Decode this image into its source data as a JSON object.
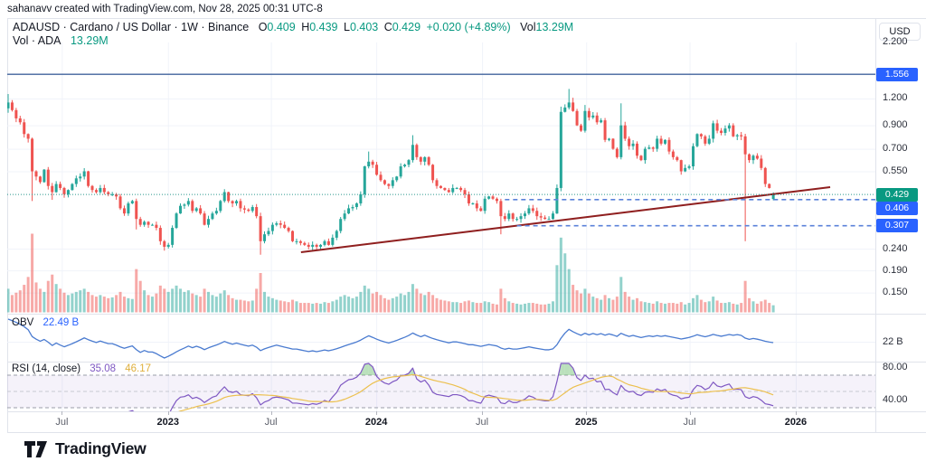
{
  "attribution": "sahanavv created with TradingView.com, Nov 28, 2025 00:31 UTC-8",
  "legend": {
    "symbol": "ADAUSD · Cardano / US Dollar · 1W · Binance",
    "o_label": "O",
    "o_value": "0.409",
    "h_label": "H",
    "h_value": "0.439",
    "l_label": "L",
    "l_value": "0.403",
    "c_label": "C",
    "c_value": "0.429",
    "change": "+0.020 (+4.89%)",
    "vol_label": "Vol",
    "vol_value": "13.29M",
    "row2_label": "Vol · ADA",
    "row2_value": "13.29M"
  },
  "indicators": {
    "obv_label": "OBV",
    "obv_value": "22.49 B",
    "rsi_label": "RSI (14, close)",
    "rsi_value": "35.08",
    "rsi_ma_value": "46.17"
  },
  "price_axis": {
    "currency": "USD",
    "ticks": [
      {
        "text": "2.200",
        "value": 2.2
      },
      {
        "text": "1.200",
        "value": 1.2
      },
      {
        "text": "0.900",
        "value": 0.9
      },
      {
        "text": "0.700",
        "value": 0.7
      },
      {
        "text": "0.550",
        "value": 0.55
      },
      {
        "text": "0.240",
        "value": 0.24
      },
      {
        "text": "0.190",
        "value": 0.19
      },
      {
        "text": "0.150",
        "value": 0.15
      }
    ],
    "obv_tick": {
      "text": "22 B",
      "y_value": 22
    },
    "rsi_ticks": [
      {
        "text": "80.00",
        "value": 80
      },
      {
        "text": "40.00",
        "value": 40
      }
    ],
    "badges": [
      {
        "text": "1.556",
        "price": 1.556,
        "color": "#2962ff"
      },
      {
        "text": "0.429",
        "price": 0.429,
        "color": "#089981"
      },
      {
        "text": "0.406",
        "price": 0.406,
        "color": "#2962ff"
      },
      {
        "text": "0.307",
        "price": 0.307,
        "color": "#2962ff"
      }
    ]
  },
  "time_axis": {
    "labels": [
      {
        "text": "Jul",
        "week": 13.4,
        "bold": false
      },
      {
        "text": "2023",
        "week": 39.9,
        "bold": true
      },
      {
        "text": "Jul",
        "week": 65.6,
        "bold": false
      },
      {
        "text": "2024",
        "week": 91.9,
        "bold": true
      },
      {
        "text": "Jul",
        "week": 118.3,
        "bold": false
      },
      {
        "text": "2025",
        "week": 144.3,
        "bold": true
      },
      {
        "text": "Jul",
        "week": 170.1,
        "bold": false
      },
      {
        "text": "2026",
        "week": 196.6,
        "bold": true
      }
    ]
  },
  "logo_text": "TradingView",
  "colors": {
    "up": "#26a69a",
    "down": "#ef5350",
    "vol_up": "rgba(38,166,154,0.5)",
    "vol_down": "rgba(239,83,80,0.5)",
    "ray_1556": "#41639c",
    "alert_dashed": "#5b82d9",
    "close_dotted": "#2a968c",
    "trendline": "#8f1f1f",
    "obv_line": "#4a7bd0",
    "rsi_line": "#7e57c2",
    "rsi_ma_line": "#ecc04e",
    "rsi_band_fill": "rgba(126,87,194,0.08)",
    "rsi_over_fill": "rgba(102,187,106,0.45)",
    "grid": "#f0f3fa",
    "separator": "#e0e3eb"
  },
  "chart_data": {
    "type": "candlestick",
    "title": "ADAUSD Cardano / US Dollar 1W Binance",
    "timeframe": "1W",
    "price_scale": "log",
    "first_week_start": "2022-03-28",
    "weeks": 192,
    "last_candle": {
      "open": 0.409,
      "high": 0.439,
      "low": 0.403,
      "close": 0.429,
      "volume": "13.29M"
    },
    "closes": [
      1.15,
      1.06,
      0.97,
      0.93,
      0.82,
      0.78,
      0.55,
      0.52,
      0.49,
      0.56,
      0.47,
      0.44,
      0.48,
      0.46,
      0.43,
      0.45,
      0.48,
      0.51,
      0.52,
      0.55,
      0.47,
      0.45,
      0.44,
      0.46,
      0.44,
      0.43,
      0.43,
      0.42,
      0.37,
      0.35,
      0.39,
      0.4,
      0.33,
      0.31,
      0.32,
      0.31,
      0.31,
      0.3,
      0.26,
      0.245,
      0.25,
      0.3,
      0.35,
      0.38,
      0.385,
      0.4,
      0.36,
      0.37,
      0.35,
      0.31,
      0.33,
      0.35,
      0.36,
      0.4,
      0.44,
      0.4,
      0.39,
      0.4,
      0.37,
      0.365,
      0.36,
      0.375,
      0.34,
      0.26,
      0.28,
      0.29,
      0.31,
      0.315,
      0.31,
      0.3,
      0.29,
      0.26,
      0.26,
      0.255,
      0.25,
      0.245,
      0.25,
      0.245,
      0.25,
      0.26,
      0.25,
      0.27,
      0.29,
      0.33,
      0.35,
      0.37,
      0.375,
      0.39,
      0.43,
      0.58,
      0.61,
      0.59,
      0.53,
      0.5,
      0.48,
      0.47,
      0.5,
      0.52,
      0.58,
      0.59,
      0.62,
      0.73,
      0.64,
      0.61,
      0.64,
      0.59,
      0.5,
      0.47,
      0.46,
      0.45,
      0.44,
      0.46,
      0.46,
      0.45,
      0.43,
      0.39,
      0.39,
      0.37,
      0.36,
      0.41,
      0.42,
      0.41,
      0.4,
      0.34,
      0.33,
      0.35,
      0.33,
      0.33,
      0.34,
      0.35,
      0.37,
      0.36,
      0.34,
      0.335,
      0.33,
      0.33,
      0.35,
      0.46,
      1.04,
      1.09,
      1.15,
      1.05,
      0.9,
      0.85,
      1.05,
      0.98,
      1.0,
      0.93,
      0.95,
      0.77,
      0.78,
      0.7,
      0.64,
      0.9,
      0.78,
      0.72,
      0.74,
      0.65,
      0.62,
      0.7,
      0.71,
      0.7,
      0.78,
      0.74,
      0.77,
      0.68,
      0.64,
      0.62,
      0.55,
      0.57,
      0.58,
      0.72,
      0.82,
      0.8,
      0.74,
      0.78,
      0.92,
      0.85,
      0.83,
      0.87,
      0.9,
      0.8,
      0.81,
      0.8,
      0.66,
      0.62,
      0.65,
      0.63,
      0.57,
      0.48,
      0.46,
      0.429
    ],
    "wick_overrides": {
      "0": {
        "o": 1.08,
        "h": 1.26,
        "l": 1.03
      },
      "6": {
        "l": 0.4
      },
      "11": {
        "l": 0.405
      },
      "32": {
        "l": 0.295
      },
      "39": {
        "l": 0.235
      },
      "63": {
        "l": 0.225
      },
      "90": {
        "h": 0.68
      },
      "101": {
        "h": 0.81
      },
      "123": {
        "l": 0.28
      },
      "138": {
        "h": 1.1
      },
      "140": {
        "h": 1.33
      },
      "141": {
        "h": 1.21
      },
      "144": {
        "h": 1.12
      },
      "153": {
        "h": 1.14
      },
      "184": {
        "l": 0.26
      },
      "191": {
        "o": 0.409,
        "h": 0.439,
        "l": 0.403
      }
    },
    "volume_rel": [
      30,
      22,
      25,
      28,
      35,
      45,
      100,
      38,
      30,
      26,
      40,
      48,
      36,
      30,
      25,
      22,
      24,
      26,
      28,
      30,
      26,
      22,
      20,
      22,
      20,
      18,
      19,
      22,
      26,
      20,
      18,
      17,
      55,
      40,
      28,
      22,
      20,
      24,
      34,
      30,
      26,
      30,
      34,
      30,
      26,
      28,
      24,
      22,
      20,
      30,
      26,
      22,
      20,
      24,
      28,
      22,
      18,
      16,
      16,
      15,
      14,
      15,
      30,
      50,
      26,
      20,
      18,
      16,
      15,
      14,
      13,
      16,
      14,
      12,
      12,
      12,
      11,
      12,
      11,
      13,
      12,
      14,
      16,
      20,
      22,
      20,
      18,
      20,
      26,
      34,
      30,
      24,
      26,
      22,
      18,
      16,
      18,
      20,
      24,
      22,
      26,
      36,
      30,
      24,
      22,
      26,
      22,
      18,
      16,
      15,
      14,
      13,
      13,
      12,
      14,
      15,
      13,
      12,
      12,
      14,
      13,
      11,
      10,
      30,
      18,
      14,
      12,
      11,
      10,
      11,
      12,
      12,
      11,
      10,
      10,
      11,
      14,
      60,
      95,
      75,
      55,
      35,
      28,
      24,
      30,
      24,
      20,
      18,
      16,
      22,
      18,
      16,
      20,
      45,
      26,
      20,
      16,
      18,
      14,
      13,
      12,
      11,
      14,
      12,
      11,
      12,
      12,
      11,
      13,
      10,
      12,
      18,
      22,
      16,
      13,
      14,
      20,
      15,
      12,
      12,
      13,
      11,
      10,
      12,
      40,
      18,
      14,
      11,
      14,
      16,
      12,
      9
    ],
    "levels": {
      "horizontal_ray": 1.556,
      "close_line": 0.429,
      "alert_lines": [
        {
          "price": 0.406,
          "from_week": 124
        },
        {
          "price": 0.307,
          "from_week": 127
        }
      ]
    },
    "trendline": {
      "from_week": 73.1,
      "from_price": 0.231,
      "to_week": 205.2,
      "to_price": 0.464
    },
    "indicator_panes": [
      {
        "name": "OBV",
        "current_value_billions": 22.49,
        "axis_tick_billions": 22
      },
      {
        "name": "RSI",
        "period": 14,
        "source": "close",
        "current": 35.08,
        "ma_current": 46.17,
        "levels": [
          70,
          50,
          30
        ],
        "axis_ticks": [
          80,
          40
        ]
      }
    ]
  }
}
